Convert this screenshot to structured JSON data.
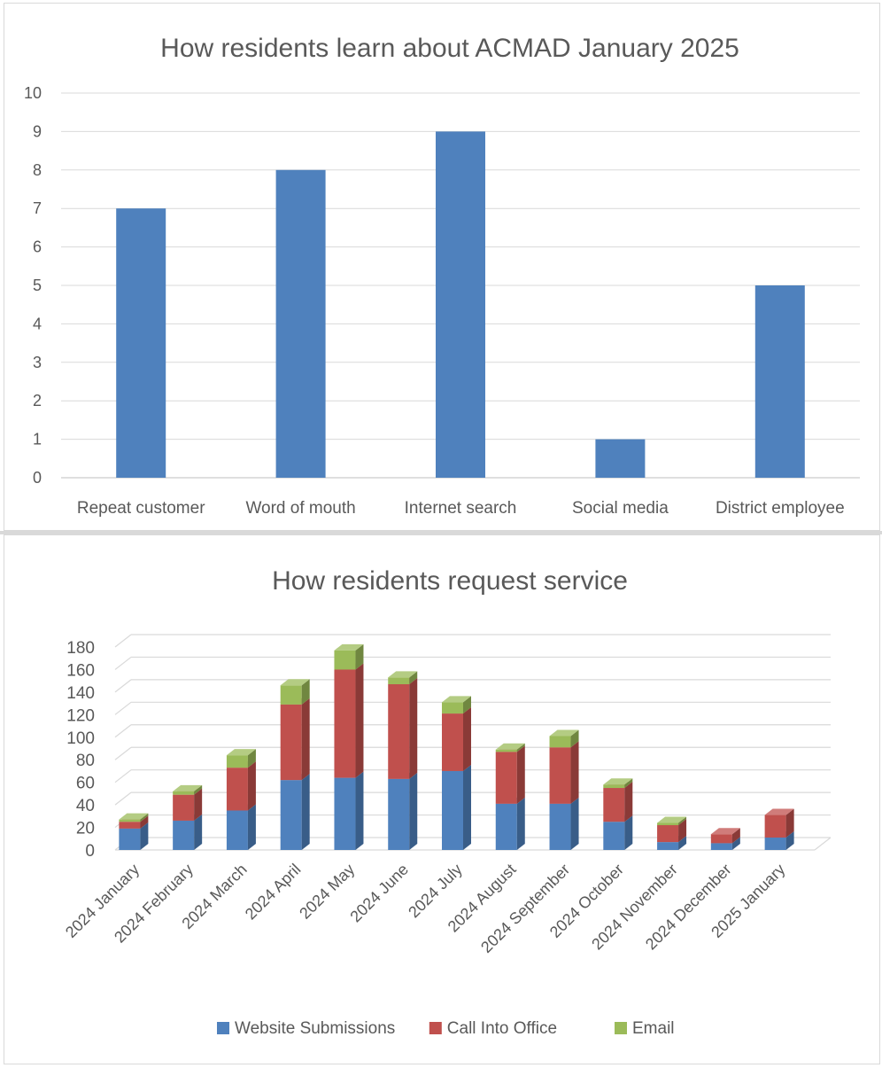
{
  "chart_data": [
    {
      "type": "bar",
      "title": "How residents learn about ACMAD January 2025",
      "categories": [
        "Repeat customer",
        "Word of mouth",
        "Internet search",
        "Social media",
        "District employee"
      ],
      "values": [
        7,
        8,
        9,
        1,
        5
      ],
      "ylim": [
        0,
        10
      ],
      "yticks": [
        "0",
        "1",
        "2",
        "3",
        "4",
        "5",
        "6",
        "7",
        "8",
        "9",
        "10"
      ],
      "xlabel": "",
      "ylabel": "",
      "grid": true,
      "color": "#4F81BD"
    },
    {
      "type": "bar",
      "stacked": true,
      "style": "3d-column",
      "title": "How residents request service",
      "categories": [
        "2024 January",
        "2024 February",
        "2024 March",
        "2024 April",
        "2024 May",
        "2024 June",
        "2024 July",
        "2024 August",
        "2024 September",
        "2024 October",
        "2024 November",
        "2024 December",
        "2025 January"
      ],
      "series": [
        {
          "name": "Website Submissions",
          "color": "#4F81BD",
          "values": [
            19,
            26,
            35,
            62,
            64,
            63,
            70,
            41,
            41,
            25,
            7,
            6,
            11
          ]
        },
        {
          "name": "Call Into Office",
          "color": "#C0504D",
          "values": [
            6,
            23,
            38,
            67,
            96,
            84,
            51,
            46,
            50,
            30,
            15,
            8,
            20
          ]
        },
        {
          "name": "Email",
          "color": "#9BBB59",
          "values": [
            2,
            3,
            11,
            17,
            17,
            6,
            10,
            2,
            10,
            3,
            2,
            0,
            0
          ]
        }
      ],
      "ylim": [
        0,
        180
      ],
      "yticks": [
        "0",
        "20",
        "40",
        "60",
        "80",
        "100",
        "120",
        "140",
        "160",
        "180"
      ],
      "xlabel": "",
      "ylabel": "",
      "grid": true,
      "legend": "bottom"
    }
  ]
}
